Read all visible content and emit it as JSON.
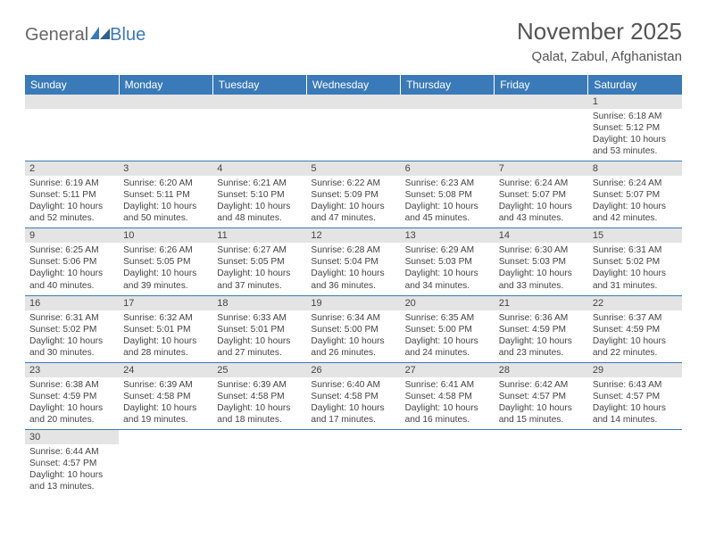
{
  "logo": {
    "part1": "General",
    "part2": "Blue"
  },
  "title": "November 2025",
  "location": "Qalat, Zabul, Afghanistan",
  "colors": {
    "header_bg": "#3a7ab8",
    "header_text": "#ffffff",
    "daynum_bg": "#e4e4e4",
    "cell_border": "#3a7ab8",
    "text": "#444444"
  },
  "day_headers": [
    "Sunday",
    "Monday",
    "Tuesday",
    "Wednesday",
    "Thursday",
    "Friday",
    "Saturday"
  ],
  "weeks": [
    [
      null,
      null,
      null,
      null,
      null,
      null,
      {
        "num": "1",
        "sunrise": "6:18 AM",
        "sunset": "5:12 PM",
        "daylight": "10 hours and 53 minutes."
      }
    ],
    [
      {
        "num": "2",
        "sunrise": "6:19 AM",
        "sunset": "5:11 PM",
        "daylight": "10 hours and 52 minutes."
      },
      {
        "num": "3",
        "sunrise": "6:20 AM",
        "sunset": "5:11 PM",
        "daylight": "10 hours and 50 minutes."
      },
      {
        "num": "4",
        "sunrise": "6:21 AM",
        "sunset": "5:10 PM",
        "daylight": "10 hours and 48 minutes."
      },
      {
        "num": "5",
        "sunrise": "6:22 AM",
        "sunset": "5:09 PM",
        "daylight": "10 hours and 47 minutes."
      },
      {
        "num": "6",
        "sunrise": "6:23 AM",
        "sunset": "5:08 PM",
        "daylight": "10 hours and 45 minutes."
      },
      {
        "num": "7",
        "sunrise": "6:24 AM",
        "sunset": "5:07 PM",
        "daylight": "10 hours and 43 minutes."
      },
      {
        "num": "8",
        "sunrise": "6:24 AM",
        "sunset": "5:07 PM",
        "daylight": "10 hours and 42 minutes."
      }
    ],
    [
      {
        "num": "9",
        "sunrise": "6:25 AM",
        "sunset": "5:06 PM",
        "daylight": "10 hours and 40 minutes."
      },
      {
        "num": "10",
        "sunrise": "6:26 AM",
        "sunset": "5:05 PM",
        "daylight": "10 hours and 39 minutes."
      },
      {
        "num": "11",
        "sunrise": "6:27 AM",
        "sunset": "5:05 PM",
        "daylight": "10 hours and 37 minutes."
      },
      {
        "num": "12",
        "sunrise": "6:28 AM",
        "sunset": "5:04 PM",
        "daylight": "10 hours and 36 minutes."
      },
      {
        "num": "13",
        "sunrise": "6:29 AM",
        "sunset": "5:03 PM",
        "daylight": "10 hours and 34 minutes."
      },
      {
        "num": "14",
        "sunrise": "6:30 AM",
        "sunset": "5:03 PM",
        "daylight": "10 hours and 33 minutes."
      },
      {
        "num": "15",
        "sunrise": "6:31 AM",
        "sunset": "5:02 PM",
        "daylight": "10 hours and 31 minutes."
      }
    ],
    [
      {
        "num": "16",
        "sunrise": "6:31 AM",
        "sunset": "5:02 PM",
        "daylight": "10 hours and 30 minutes."
      },
      {
        "num": "17",
        "sunrise": "6:32 AM",
        "sunset": "5:01 PM",
        "daylight": "10 hours and 28 minutes."
      },
      {
        "num": "18",
        "sunrise": "6:33 AM",
        "sunset": "5:01 PM",
        "daylight": "10 hours and 27 minutes."
      },
      {
        "num": "19",
        "sunrise": "6:34 AM",
        "sunset": "5:00 PM",
        "daylight": "10 hours and 26 minutes."
      },
      {
        "num": "20",
        "sunrise": "6:35 AM",
        "sunset": "5:00 PM",
        "daylight": "10 hours and 24 minutes."
      },
      {
        "num": "21",
        "sunrise": "6:36 AM",
        "sunset": "4:59 PM",
        "daylight": "10 hours and 23 minutes."
      },
      {
        "num": "22",
        "sunrise": "6:37 AM",
        "sunset": "4:59 PM",
        "daylight": "10 hours and 22 minutes."
      }
    ],
    [
      {
        "num": "23",
        "sunrise": "6:38 AM",
        "sunset": "4:59 PM",
        "daylight": "10 hours and 20 minutes."
      },
      {
        "num": "24",
        "sunrise": "6:39 AM",
        "sunset": "4:58 PM",
        "daylight": "10 hours and 19 minutes."
      },
      {
        "num": "25",
        "sunrise": "6:39 AM",
        "sunset": "4:58 PM",
        "daylight": "10 hours and 18 minutes."
      },
      {
        "num": "26",
        "sunrise": "6:40 AM",
        "sunset": "4:58 PM",
        "daylight": "10 hours and 17 minutes."
      },
      {
        "num": "27",
        "sunrise": "6:41 AM",
        "sunset": "4:58 PM",
        "daylight": "10 hours and 16 minutes."
      },
      {
        "num": "28",
        "sunrise": "6:42 AM",
        "sunset": "4:57 PM",
        "daylight": "10 hours and 15 minutes."
      },
      {
        "num": "29",
        "sunrise": "6:43 AM",
        "sunset": "4:57 PM",
        "daylight": "10 hours and 14 minutes."
      }
    ],
    [
      {
        "num": "30",
        "sunrise": "6:44 AM",
        "sunset": "4:57 PM",
        "daylight": "10 hours and 13 minutes."
      },
      null,
      null,
      null,
      null,
      null,
      null
    ]
  ],
  "labels": {
    "sunrise": "Sunrise: ",
    "sunset": "Sunset: ",
    "daylight": "Daylight: "
  }
}
